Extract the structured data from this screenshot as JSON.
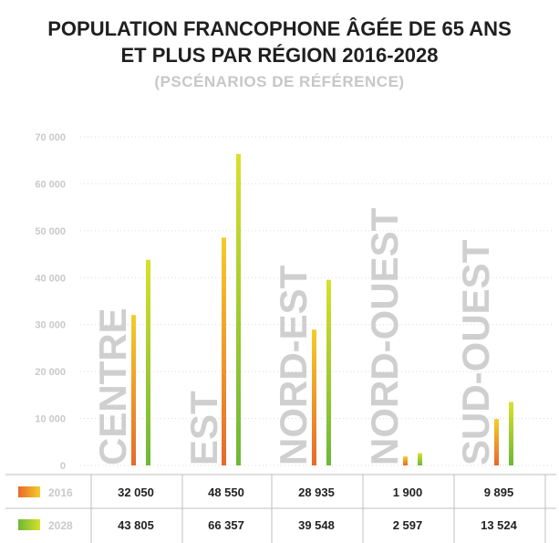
{
  "title_line1": "POPULATION FRANCOPHONE ÂGÉE DE 65 ANS",
  "title_line2": "ET PLUS PAR RÉGION 2016-2028",
  "subtitle": "(PSCÉNARIOS DE RÉFÉRENCE)",
  "colors": {
    "bar_2016": [
      "#f4cc2a",
      "#e8692a"
    ],
    "bar_2028": [
      "#d9e02a",
      "#6cb838"
    ],
    "grid": "#dcdcdc",
    "category_text": "#cfcfcf"
  },
  "chart_data": {
    "type": "bar",
    "categories": [
      "CENTRE",
      "EST",
      "NORD-EST",
      "NORD-OUEST",
      "SUD-OUEST"
    ],
    "series": [
      {
        "name": "2016",
        "values": [
          32050,
          48550,
          28935,
          1900,
          9895
        ],
        "labels": [
          "32 050",
          "48 550",
          "28 935",
          "1 900",
          "9 895"
        ]
      },
      {
        "name": "2028",
        "values": [
          43805,
          66357,
          39548,
          2597,
          13524
        ],
        "labels": [
          "43 805",
          "66 357",
          "39 548",
          "2 597",
          "13 524"
        ]
      }
    ],
    "ylim": [
      0,
      70000
    ],
    "yticks": [
      0,
      10000,
      20000,
      30000,
      40000,
      50000,
      60000,
      70000
    ],
    "ytick_labels": [
      "0",
      "10 000",
      "20 000",
      "30 000",
      "40 000",
      "50 000",
      "60 000",
      "70 000"
    ],
    "grid": true,
    "legend": "table-below"
  }
}
